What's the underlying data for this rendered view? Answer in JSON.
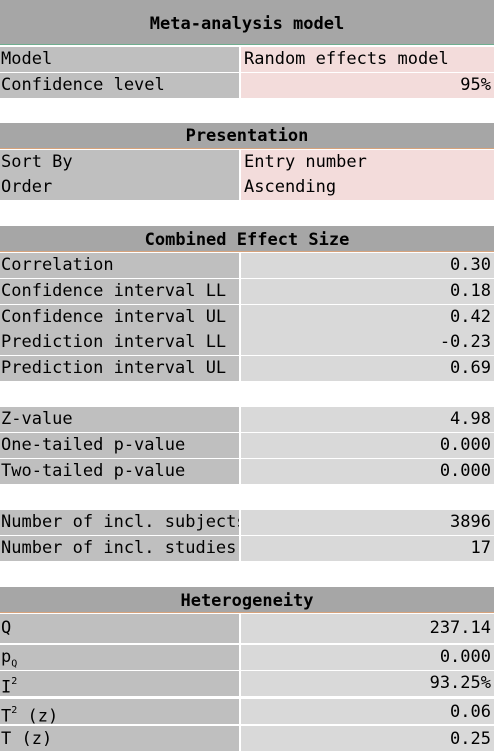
{
  "meta": {
    "title": "Meta-analysis model",
    "model_label": "Model",
    "model_value": "Random effects model",
    "conf_label": "Confidence level",
    "conf_value": "95%"
  },
  "presentation": {
    "title": "Presentation",
    "sort_label": "Sort By",
    "sort_value": "Entry number",
    "order_label": "Order",
    "order_value": "Ascending"
  },
  "combined": {
    "title": "Combined Effect Size",
    "rows": [
      {
        "label": "Correlation",
        "value": "0.30"
      },
      {
        "label": "Confidence interval LL",
        "value": "0.18"
      },
      {
        "label": "Confidence interval UL",
        "value": "0.42"
      },
      {
        "label": "Prediction interval LL",
        "value": "-0.23"
      },
      {
        "label": "Prediction interval UL",
        "value": "0.69"
      }
    ]
  },
  "tests": {
    "rows": [
      {
        "label": "Z-value",
        "value": "4.98"
      },
      {
        "label": "One-tailed p-value",
        "value": "0.000"
      },
      {
        "label": "Two-tailed p-value",
        "value": "0.000"
      }
    ]
  },
  "counts": {
    "rows": [
      {
        "label": "Number of incl. subjects",
        "value": "3896"
      },
      {
        "label": "Number of incl. studies",
        "value": "17"
      }
    ]
  },
  "heterogeneity": {
    "title": "Heterogeneity",
    "q_label": "Q",
    "q_value": "237.14",
    "pq_label_main": "p",
    "pq_label_sub": "Q",
    "pq_value": "0.000",
    "i2_label_main": "I",
    "i2_label_sup": "2",
    "i2_value": "93.25%",
    "t2_label_main": "T",
    "t2_label_sup": "2",
    "t2_label_rest": " (z)",
    "t2_value": "0.06",
    "t_label": "T (z)",
    "t_value": "0.25"
  }
}
